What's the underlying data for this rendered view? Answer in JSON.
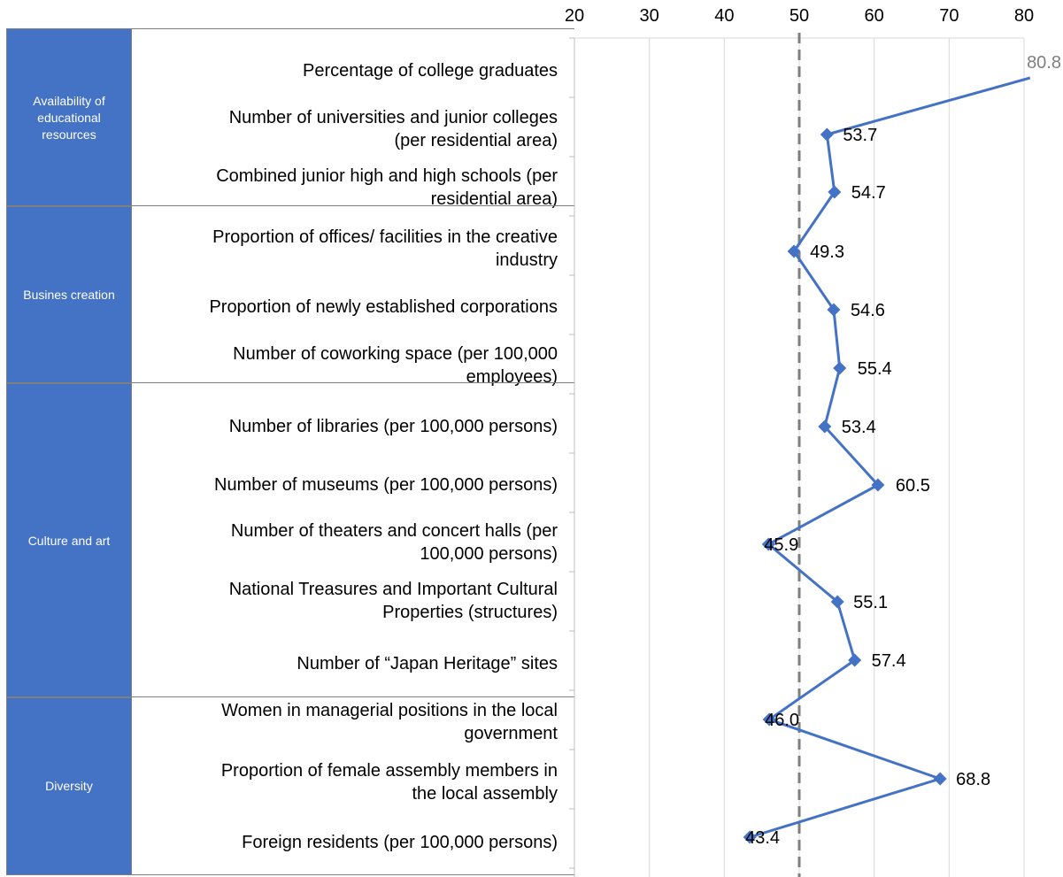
{
  "chart_data": {
    "type": "line",
    "orientation": "horizontal",
    "x_ticks": [
      20,
      30,
      40,
      50,
      60,
      70,
      80
    ],
    "xlim": [
      20,
      80
    ],
    "reference_value": 50,
    "grid": true,
    "marker": "diamond",
    "line_color": "#4472c4",
    "category_color": "#4472c4",
    "groups": [
      {
        "name": "Availability of educational resources",
        "display": "Availability of\neducational\nresources"
      },
      {
        "name": "Busines creation",
        "display": "Busines creation"
      },
      {
        "name": "Culture and art",
        "display": "Culture and art"
      },
      {
        "name": "Diversity",
        "display": "Diversity"
      }
    ],
    "rows": [
      {
        "label": "Percentage of college graduates",
        "value": 80.8,
        "value_label": "80.8"
      },
      {
        "label": "Number of universities and junior colleges\n(per residential area)",
        "value": 53.7,
        "value_label": "53.7"
      },
      {
        "label": "Combined junior high and high schools (per\nresidential area)",
        "value": 54.7,
        "value_label": "54.7"
      },
      {
        "label": "Proportion of offices/ facilities in the creative\nindustry",
        "value": 49.3,
        "value_label": "49.3"
      },
      {
        "label": "Proportion of newly established corporations",
        "value": 54.6,
        "value_label": "54.6"
      },
      {
        "label": "Number of coworking space (per 100,000\nemployees)",
        "value": 55.4,
        "value_label": "55.4"
      },
      {
        "label": "Number of libraries (per 100,000 persons)",
        "value": 53.4,
        "value_label": "53.4"
      },
      {
        "label": "Number of museums (per 100,000 persons)",
        "value": 60.5,
        "value_label": "60.5"
      },
      {
        "label": "Number of theaters and concert halls (per\n100,000 persons)",
        "value": 45.9,
        "value_label": "45.9"
      },
      {
        "label": "National Treasures and Important Cultural\nProperties (structures)",
        "value": 55.1,
        "value_label": "55.1"
      },
      {
        "label": "Number of “Japan Heritage” sites",
        "value": 57.4,
        "value_label": "57.4"
      },
      {
        "label": "Women in managerial positions in the local\ngovernment",
        "value": 46.0,
        "value_label": "46.0"
      },
      {
        "label": "Proportion of female assembly members in\nthe local assembly",
        "value": 68.8,
        "value_label": "68.8"
      },
      {
        "label": "Foreign residents (per 100,000 persons)",
        "value": 43.4,
        "value_label": "43.4"
      }
    ]
  }
}
